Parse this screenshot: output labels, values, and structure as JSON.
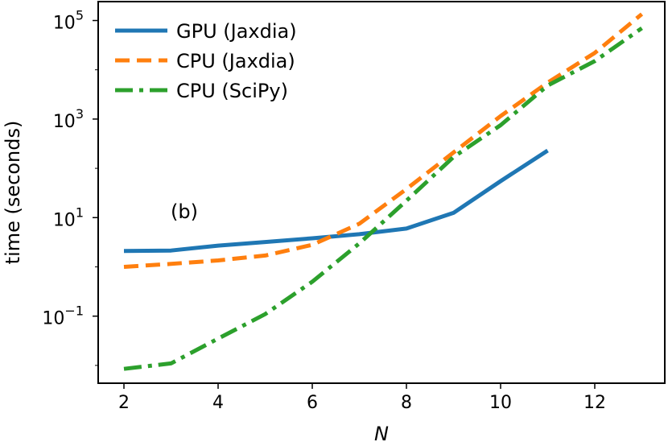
{
  "chart_data": {
    "type": "line",
    "annotation": "(b)",
    "xlabel": "N",
    "ylabel": "time (seconds)",
    "yscale": "log",
    "xlim": [
      1.4,
      13.3
    ],
    "ylim": [
      0.003,
      200000
    ],
    "x_ticks": [
      2,
      4,
      6,
      8,
      10,
      12
    ],
    "y_ticks": [
      {
        "value": 0.1,
        "base": "10",
        "exp": "−1"
      },
      {
        "value": 10,
        "base": "10",
        "exp": "1"
      },
      {
        "value": 1000,
        "base": "10",
        "exp": "3"
      },
      {
        "value": 100000,
        "base": "10",
        "exp": "5"
      }
    ],
    "grid": false,
    "legend_position": "top-left",
    "series": [
      {
        "name": "GPU (Jaxdia)",
        "color": "#1f77b4",
        "style": "solid",
        "x": [
          2,
          3,
          4,
          5,
          6,
          7,
          8,
          9,
          10,
          11
        ],
        "y": [
          2.1,
          2.15,
          2.7,
          3.2,
          3.8,
          4.6,
          6.0,
          12.5,
          55,
          230
        ]
      },
      {
        "name": "CPU (Jaxdia)",
        "color": "#ff7f0e",
        "style": "dashed",
        "x": [
          2,
          3,
          4,
          5,
          6,
          7,
          8,
          9,
          10,
          11,
          12,
          13
        ],
        "y": [
          1.0,
          1.15,
          1.35,
          1.7,
          2.8,
          7.5,
          38,
          210,
          1150,
          5500,
          22000,
          135000
        ]
      },
      {
        "name": "CPU (SciPy)",
        "color": "#2ca02c",
        "style": "dashdot",
        "x": [
          2,
          3,
          4,
          5,
          6,
          7,
          8,
          9,
          10,
          11,
          12,
          13
        ],
        "y": [
          0.0085,
          0.011,
          0.035,
          0.11,
          0.5,
          3.0,
          22,
          170,
          750,
          4800,
          15000,
          70000
        ]
      }
    ]
  }
}
